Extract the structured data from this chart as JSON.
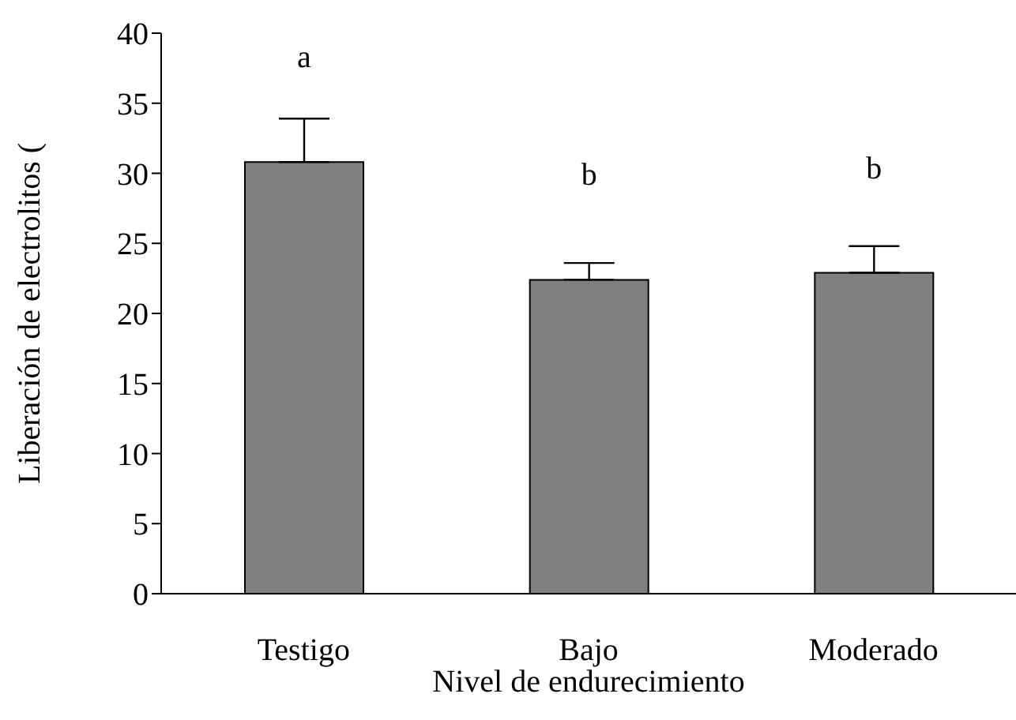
{
  "chart_data": {
    "type": "bar",
    "xlabel": "Nivel de endurecimiento",
    "ylabel": "Liberación de electrolitos (",
    "categories": [
      "Testigo",
      "Bajo",
      "Moderado"
    ],
    "values": [
      30.8,
      22.4,
      22.9
    ],
    "errors": [
      3.1,
      1.2,
      1.9
    ],
    "color": "#808080",
    "ylim": [
      0,
      40
    ],
    "yticks": [
      0,
      5,
      10,
      15,
      20,
      25,
      30,
      35,
      40
    ],
    "grid": false,
    "annotations": [
      "a",
      "b",
      "b"
    ]
  }
}
